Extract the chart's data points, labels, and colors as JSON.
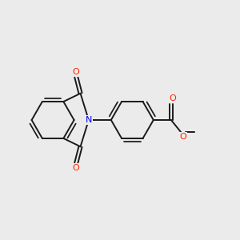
{
  "background_color": "#ebebeb",
  "bond_color": "#1a1a1a",
  "bond_width": 1.4,
  "N_color": "#0000ff",
  "O_color": "#ff2200",
  "font_size_atom": 8.0,
  "fig_width": 3.0,
  "fig_height": 3.0,
  "xlim": [
    0,
    10
  ],
  "ylim": [
    0,
    10
  ]
}
